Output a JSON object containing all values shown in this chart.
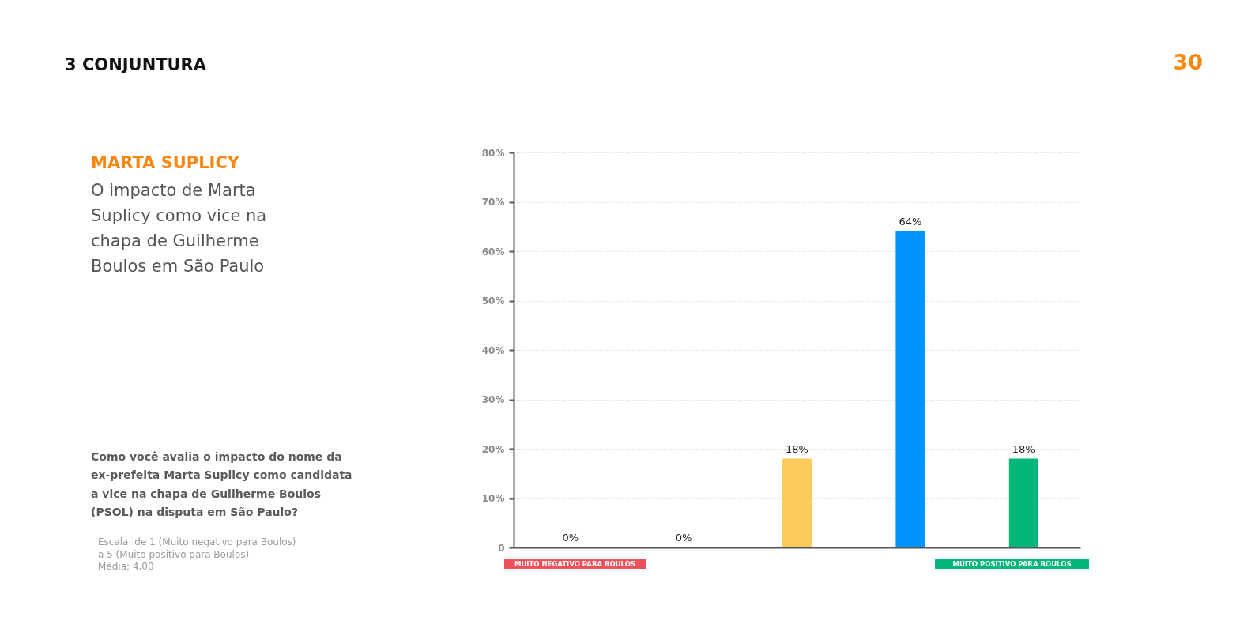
{
  "chart_data": {
    "type": "bar",
    "title": "MARTA SUPLICY",
    "subtitle": "O impacto de Marta Suplicy como vice na chapa de Guilherme Boulos em São Paulo",
    "categories": [
      null,
      null,
      null,
      null,
      null
    ],
    "values": [
      0,
      0,
      18,
      64,
      18
    ],
    "colors": [
      null,
      null,
      "#fccb5e",
      "#0092ff",
      "#00b67a"
    ],
    "value_labels": [
      "0%",
      "0%",
      "18%",
      "64%",
      "18%"
    ],
    "ylim": [
      0,
      80
    ],
    "yticks": [
      0,
      {
        "value": 10,
        "label": "10%"
      },
      {
        "value": 20,
        "label": "20%"
      },
      {
        "value": 30,
        "label": "30%"
      },
      {
        "value": 40,
        "label": "40%"
      },
      {
        "value": 50,
        "label": "50%"
      },
      {
        "value": 60,
        "label": "60%"
      },
      {
        "value": 70,
        "label": "70%"
      },
      {
        "value": 80,
        "label": "80%"
      }
    ],
    "grid": "y",
    "annotations": [
      "3 CONJUNTURA",
      "30",
      "Como você avalia o impacto do nome da ex-prefeita Marta Suplicy como candidata a vice na chapa de Guilherme Boulos (PSOL) na disputa em São Paulo?",
      "Escala: de 1 (Muito negativo para Boulos) a 5 (Muito positivo para Boulos)",
      "Média: 4,00",
      "MUITO NEGATIVO PARA BOULOS",
      "MUITO POSITIVO PARA BOULOS"
    ]
  }
}
